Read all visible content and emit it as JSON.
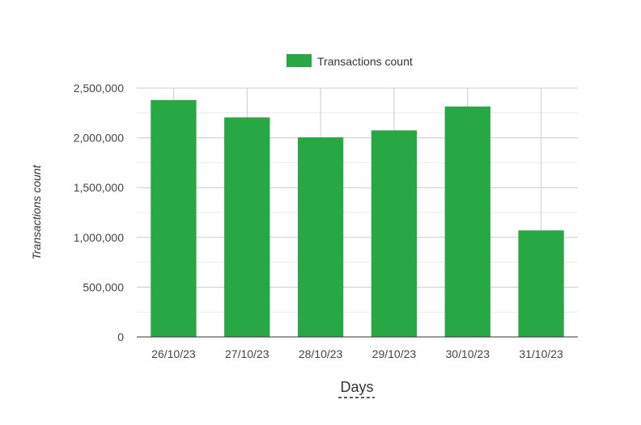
{
  "chart_data": {
    "type": "bar",
    "title": "",
    "categories": [
      "26/10/23",
      "27/10/23",
      "28/10/23",
      "29/10/23",
      "30/10/23",
      "31/10/23"
    ],
    "series": [
      {
        "name": "Transactions count",
        "values": [
          2380000,
          2205000,
          2005000,
          2075000,
          2315000,
          1070000
        ]
      }
    ],
    "xlabel": "Days",
    "ylabel": "Transactions count",
    "ylim": [
      0,
      2500000
    ],
    "yticks": [
      0,
      500000,
      1000000,
      1500000,
      2000000,
      2500000
    ],
    "ytick_labels": [
      "0",
      "500,000",
      "1,000,000",
      "1,500,000",
      "2,000,000",
      "2,500,000"
    ],
    "legend_position": "top",
    "grid": true,
    "colors": {
      "bar": "#28a745",
      "grid_major": "#cccccc",
      "grid_minor": "#ebebeb",
      "axis": "#333333",
      "text": "#444444"
    }
  }
}
